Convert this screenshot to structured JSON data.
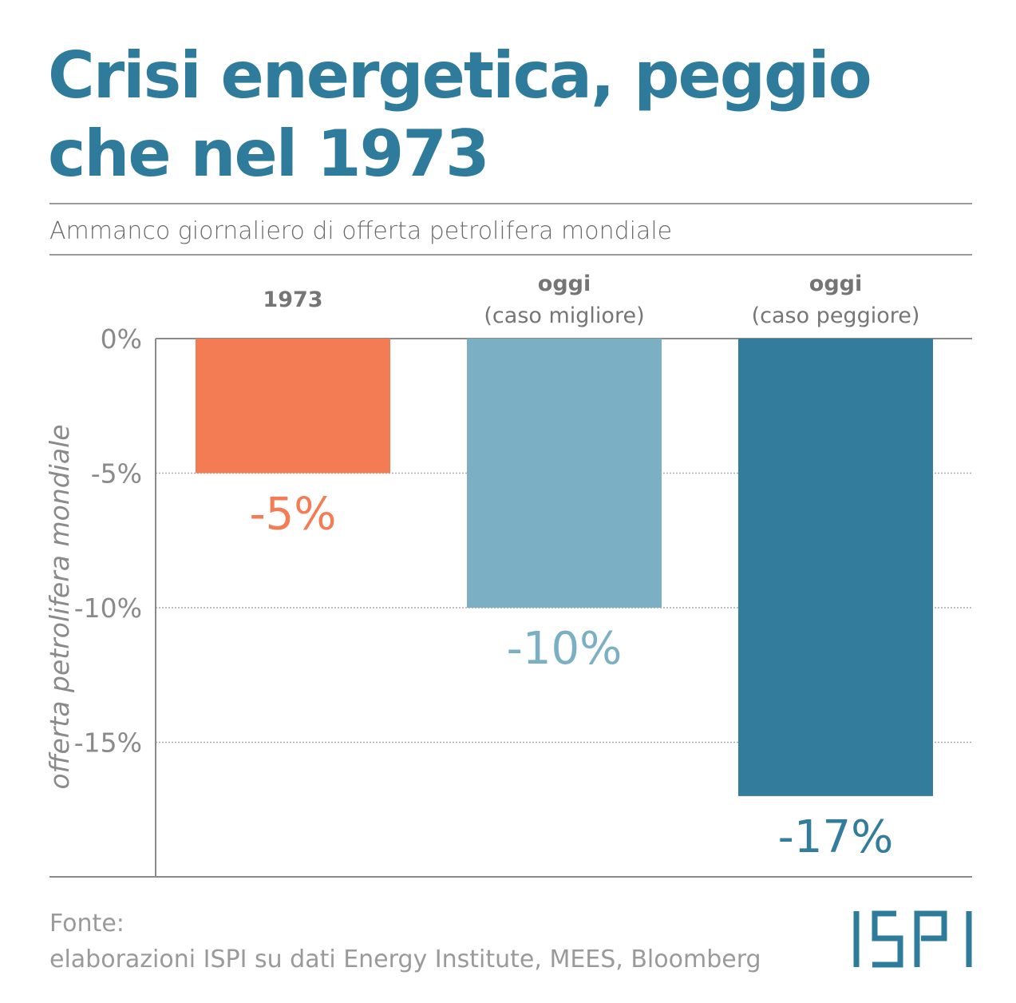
{
  "title_lines": [
    "Crisi energetica, peggio",
    "che nel 1973"
  ],
  "subtitle": "Ammanco giornaliero di offerta petrolifera mondiale",
  "source_lines": [
    "Fonte:",
    "elaborazioni ISPI su dati Energy Institute, MEES, Bloomberg"
  ],
  "logo": "ISPI",
  "chart_data": {
    "type": "bar",
    "categories": [
      {
        "line1": "1973",
        "line2": ""
      },
      {
        "line1": "oggi",
        "line2": "(caso migliore)"
      },
      {
        "line1": "oggi",
        "line2": "(caso peggiore)"
      }
    ],
    "values": [
      -5,
      -10,
      -17
    ],
    "data_labels": [
      "-5%",
      "-10%",
      "-17%"
    ],
    "colors": [
      "#f47c55",
      "#7aafc4",
      "#337c9c"
    ],
    "ylabel": "offerta petrolifera mondiale",
    "ylim": [
      -20,
      0
    ],
    "yticks": [
      0,
      -5,
      -10,
      -15
    ],
    "ytick_labels": [
      "0%",
      "-5%",
      "-10%",
      "-15%"
    ],
    "grid": true
  }
}
